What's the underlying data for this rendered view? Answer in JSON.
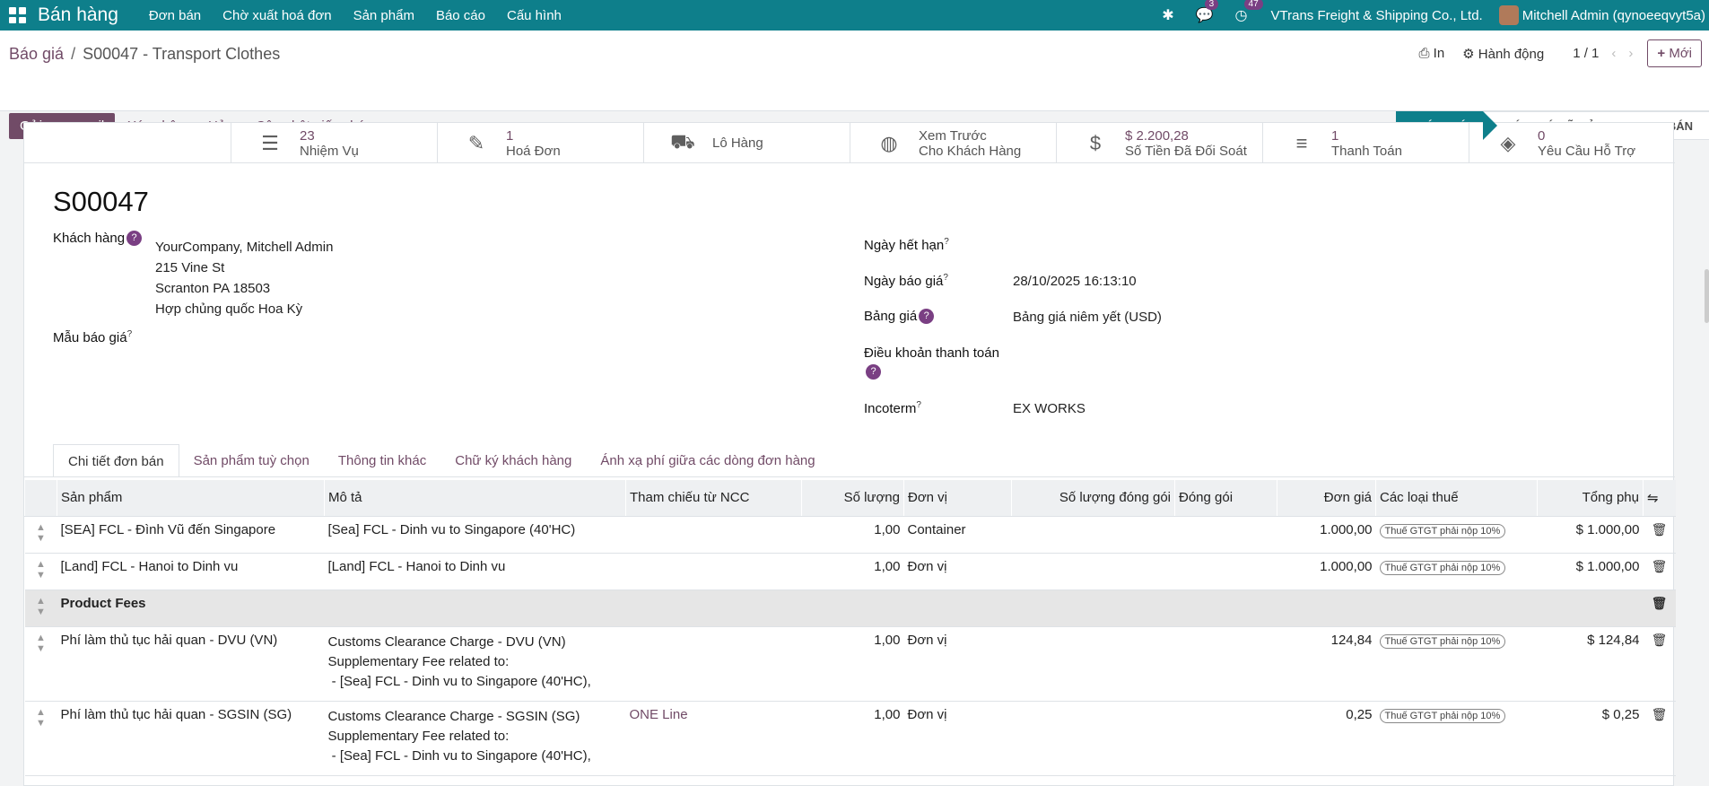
{
  "topbar": {
    "app_name": "Bán hàng",
    "menu": [
      "Đơn bán",
      "Chờ xuất hoá đơn",
      "Sản phẩm",
      "Báo cáo",
      "Cấu hình"
    ],
    "chat_count": "3",
    "activity_count": "47",
    "company": "VTrans Freight & Shipping Co., Ltd.",
    "user": "Mitchell Admin (qynoeeqvyt5a)"
  },
  "breadcrumb": {
    "root": "Báo giá",
    "separator": "/",
    "current": "S00047 - Transport Clothes"
  },
  "control": {
    "print": "In",
    "action": "Hành động",
    "pager": "1 / 1",
    "new": "Mới"
  },
  "buttons": {
    "send_email": "Gửi qua email",
    "confirm": "Xác nhận",
    "cancel": "Hủy",
    "update_license": "Cập nhật giấy phép"
  },
  "stages": [
    "BÁO GIÁ",
    "BÁO GIÁ ĐÃ GỬI",
    "ĐƠN BÁN"
  ],
  "smart_buttons": [
    {
      "icon": "tasks-icon",
      "value": "23",
      "label": "Nhiệm Vụ"
    },
    {
      "icon": "invoice-icon",
      "value": "1",
      "label": "Hoá Đơn"
    },
    {
      "icon": "truck-icon",
      "value": "",
      "label": "Lô Hàng"
    },
    {
      "icon": "globe-icon",
      "value": "Xem Trước",
      "label": "Cho Khách Hàng"
    },
    {
      "icon": "dollar-icon",
      "value": "$ 2.200,28",
      "label": "Số Tiền Đã Đối Soát"
    },
    {
      "icon": "list-icon",
      "value": "1",
      "label": "Thanh Toán"
    },
    {
      "icon": "ticket-icon",
      "value": "0",
      "label": "Yêu Cầu Hỗ Trợ"
    }
  ],
  "form": {
    "name": "S00047",
    "customer_label": "Khách hàng",
    "customer": [
      "YourCompany, Mitchell Admin",
      "215 Vine St",
      "Scranton PA 18503",
      "Hợp chủng quốc Hoa Kỳ"
    ],
    "template_label": "Mẫu báo giá",
    "expiry_label": "Ngày hết hạn",
    "quote_date_label": "Ngày báo giá",
    "quote_date": "28/10/2025 16:13:10",
    "pricelist_label": "Bảng giá",
    "pricelist": "Bảng giá niêm yết (USD)",
    "payment_terms_label": "Điều khoản thanh toán",
    "incoterm_label": "Incoterm",
    "incoterm": "EX WORKS"
  },
  "tabs": [
    "Chi tiết đơn bán",
    "Sản phẩm tuỳ chọn",
    "Thông tin khác",
    "Chữ ký khách hàng",
    "Ánh xạ phí giữa các dòng đơn hàng"
  ],
  "table": {
    "headers": [
      "Sản phẩm",
      "Mô tả",
      "Tham chiếu từ NCC",
      "Số lượng",
      "Đơn vị",
      "Số lượng đóng gói",
      "Đóng gói",
      "Đơn giá",
      "Các loại thuế",
      "Tổng phụ"
    ],
    "rows": [
      {
        "product": "[SEA] FCL - Đình Vũ đến Singapore",
        "desc1": "[Sea] FCL - Dinh vu to Singapore (40'HC)",
        "desc2": "",
        "desc3": "",
        "ref": "",
        "qty": "1,00",
        "uom": "Container",
        "price": "1.000,00",
        "tax": "Thuế GTGT phải nộp 10%",
        "subtotal": "$ 1.000,00"
      },
      {
        "product": "[Land] FCL - Hanoi to Dinh vu",
        "desc1": "[Land] FCL - Hanoi to Dinh vu",
        "desc2": "",
        "desc3": "",
        "ref": "",
        "qty": "1,00",
        "uom": "Đơn vị",
        "price": "1.000,00",
        "tax": "Thuế GTGT phải nộp 10%",
        "subtotal": "$ 1.000,00"
      },
      {
        "section": "Product Fees"
      },
      {
        "product": "Phí làm thủ tục hải quan - DVU (VN)",
        "desc1": "Customs Clearance Charge - DVU (VN)",
        "desc2": "Supplementary Fee related to:",
        "desc3": " - [Sea] FCL - Dinh vu to Singapore (40'HC),",
        "ref": "",
        "qty": "1,00",
        "uom": "Đơn vị",
        "price": "124,84",
        "tax": "Thuế GTGT phải nộp 10%",
        "subtotal": "$ 124,84"
      },
      {
        "product": "Phí làm thủ tục hải quan - SGSIN (SG)",
        "desc1": "Customs Clearance Charge - SGSIN (SG)",
        "desc2": "Supplementary Fee related to:",
        "desc3": " - [Sea] FCL - Dinh vu to Singapore (40'HC),",
        "ref": "ONE Line",
        "qty": "1,00",
        "uom": "Đơn vị",
        "price": "0,25",
        "tax": "Thuế GTGT phải nộp 10%",
        "subtotal": "$ 0,25"
      }
    ]
  }
}
